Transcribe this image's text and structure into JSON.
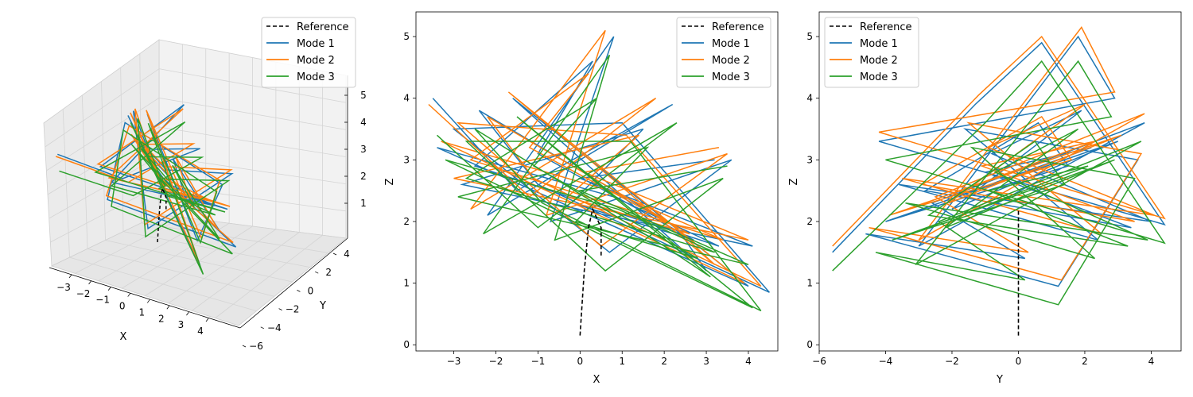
{
  "legend": {
    "reference": "Reference",
    "mode1": "Mode 1",
    "mode2": "Mode 2",
    "mode3": "Mode 3"
  },
  "colors": {
    "reference": "#000000",
    "mode1": "#1f77b4",
    "mode2": "#ff7f0e",
    "mode3": "#2ca02c",
    "pane": "#f2f2f2",
    "grid": "#d4d4d4"
  },
  "chart_data": [
    {
      "type": "line",
      "view": "3d",
      "xlabel": "X",
      "ylabel": "Y",
      "zlabel": "",
      "xticks": [
        "−3",
        "−2",
        "−1",
        "0",
        "1",
        "2",
        "3",
        "4"
      ],
      "yticks": [
        "−6",
        "−4",
        "−2",
        "0",
        "2",
        "4"
      ],
      "zticks": [
        "1",
        "2",
        "3",
        "4",
        "5"
      ],
      "legend_position": "top-right",
      "grid": true
    },
    {
      "type": "line",
      "view": "x-z projection",
      "xlabel": "X",
      "ylabel": "Z",
      "xlim": [
        -3.9,
        4.7
      ],
      "ylim": [
        -0.1,
        5.4
      ],
      "xticks": [
        "−3",
        "−2",
        "−1",
        "0",
        "1",
        "2",
        "3",
        "4"
      ],
      "yticks": [
        "0",
        "1",
        "2",
        "3",
        "4",
        "5"
      ],
      "legend_position": "top-right",
      "grid": false,
      "reference": {
        "x": [
          0.0,
          0.1,
          0.2,
          0.3,
          0.5,
          0.5
        ],
        "y": [
          0.15,
          1.2,
          1.9,
          2.2,
          1.9,
          1.45
        ]
      },
      "series": [
        {
          "name": "Mode 1",
          "x": [
            -3.5,
            -1.5,
            2.2,
            -2.2,
            0.8,
            -0.7,
            3.6,
            0.7,
            -3.0,
            1.0,
            4.5,
            -1.0,
            -2.4,
            2.3,
            3.0,
            -1.6,
            4.0,
            -3.4,
            0.8,
            3.3,
            -2.5,
            0.3,
            -1.0,
            2.7,
            -0.2,
            1.5,
            -2.8,
            4.1,
            0.0,
            3.2
          ],
          "y": [
            4.0,
            2.5,
            3.9,
            2.1,
            5.0,
            2.0,
            3.0,
            1.5,
            3.5,
            3.6,
            0.85,
            2.6,
            3.8,
            1.9,
            1.2,
            4.0,
            0.95,
            3.2,
            2.4,
            1.6,
            2.9,
            4.6,
            3.1,
            1.7,
            2.3,
            3.5,
            2.6,
            1.6,
            2.7,
            3.0
          ]
        },
        {
          "name": "Mode 2",
          "x": [
            -3.6,
            -1.2,
            1.8,
            -2.6,
            0.6,
            -0.8,
            3.5,
            0.5,
            -2.9,
            1.1,
            4.3,
            -1.1,
            -2.2,
            2.1,
            3.2,
            -1.7,
            3.9,
            -3.3,
            0.7,
            3.4,
            -2.6,
            0.2,
            -1.2,
            2.6,
            -0.3,
            1.4,
            -3.0,
            4.0,
            0.1,
            3.3
          ],
          "y": [
            3.9,
            2.4,
            4.0,
            2.2,
            5.1,
            2.1,
            3.1,
            1.6,
            3.6,
            3.4,
            0.95,
            2.7,
            3.7,
            2.0,
            1.3,
            4.1,
            1.0,
            3.3,
            2.5,
            1.7,
            3.0,
            4.4,
            3.2,
            1.8,
            2.4,
            3.4,
            2.7,
            1.7,
            2.8,
            3.2
          ]
        },
        {
          "name": "Mode 3",
          "x": [
            -3.4,
            -1.0,
            2.3,
            -2.3,
            0.7,
            -0.6,
            3.4,
            0.6,
            -2.7,
            1.2,
            4.3,
            -0.9,
            -2.5,
            2.0,
            3.1,
            -1.5,
            4.1,
            -3.2,
            0.9,
            3.2,
            -2.7,
            0.4,
            -1.1,
            2.8,
            -0.1,
            1.6,
            -2.9,
            4.0,
            0.0,
            3.5
          ],
          "y": [
            3.4,
            1.9,
            3.6,
            1.8,
            4.7,
            1.7,
            2.7,
            1.2,
            3.3,
            3.3,
            0.55,
            2.3,
            3.5,
            1.6,
            1.1,
            3.7,
            0.6,
            3.0,
            2.2,
            1.5,
            2.7,
            4.0,
            2.9,
            1.4,
            2.0,
            3.2,
            2.4,
            1.3,
            2.5,
            2.9
          ]
        }
      ]
    },
    {
      "type": "line",
      "view": "y-z projection",
      "xlabel": "Y",
      "ylabel": "Z",
      "xlim": [
        -6.0,
        4.9
      ],
      "ylim": [
        -0.1,
        5.4
      ],
      "xticks": [
        "−6",
        "−4",
        "−2",
        "0",
        "2",
        "4"
      ],
      "yticks": [
        "0",
        "1",
        "2",
        "3",
        "4",
        "5"
      ],
      "legend_position": "top-left",
      "grid": false,
      "reference": {
        "x": [
          0.0,
          0.0,
          0.0,
          0.0,
          0.0
        ],
        "y": [
          0.15,
          1.0,
          1.6,
          2.0,
          2.2
        ]
      },
      "series": [
        {
          "name": "Mode 1",
          "x": [
            -5.6,
            -1.3,
            0.7,
            4.4,
            -4.2,
            2.9,
            1.8,
            -3.0,
            3.8,
            -2.6,
            0.2,
            -4.6,
            1.2,
            3.6,
            -1.6,
            2.4,
            -3.6,
            4.0,
            -0.8,
            1.9,
            -2.0,
            3.0,
            -4.0,
            1.5,
            0.6,
            -2.8,
            3.4,
            -1.0,
            2.2,
            -3.4
          ],
          "y": [
            1.5,
            3.9,
            4.9,
            1.95,
            3.3,
            4.0,
            5.0,
            1.6,
            3.6,
            2.3,
            1.4,
            1.8,
            0.95,
            3.0,
            3.5,
            1.7,
            2.6,
            2.0,
            3.1,
            3.8,
            2.2,
            3.3,
            2.0,
            2.9,
            3.6,
            2.5,
            1.9,
            2.8,
            3.2,
            2.1
          ]
        },
        {
          "name": "Mode 2",
          "x": [
            -5.6,
            -1.2,
            0.7,
            4.4,
            -4.2,
            2.9,
            1.9,
            -3.0,
            3.8,
            -2.5,
            0.3,
            -4.5,
            1.3,
            3.7,
            -1.5,
            2.5,
            -3.5,
            4.1,
            -0.9,
            2.0,
            -2.1,
            3.1,
            -3.9,
            1.6,
            0.7,
            -2.9,
            3.5,
            -1.1,
            2.3,
            -3.3
          ],
          "y": [
            1.6,
            4.05,
            5.0,
            2.05,
            3.45,
            4.1,
            5.15,
            1.7,
            3.75,
            2.4,
            1.5,
            1.9,
            1.05,
            3.1,
            3.6,
            1.8,
            2.7,
            2.1,
            3.2,
            3.9,
            2.3,
            3.4,
            2.1,
            3.0,
            3.7,
            2.6,
            2.0,
            2.9,
            3.3,
            2.2
          ]
        },
        {
          "name": "Mode 3",
          "x": [
            -5.6,
            -1.0,
            0.7,
            4.4,
            -4.0,
            2.8,
            1.8,
            -3.1,
            3.7,
            -2.4,
            0.2,
            -4.3,
            1.2,
            3.5,
            -1.4,
            2.3,
            -3.4,
            3.9,
            -0.7,
            1.8,
            -2.2,
            2.9,
            -3.8,
            1.4,
            0.5,
            -2.7,
            3.3,
            -0.9,
            2.1,
            -3.2
          ],
          "y": [
            1.2,
            3.6,
            4.6,
            1.65,
            3.0,
            3.7,
            4.6,
            1.3,
            3.3,
            2.0,
            1.05,
            1.5,
            0.65,
            2.7,
            3.2,
            1.4,
            2.3,
            1.7,
            2.8,
            3.5,
            1.9,
            3.0,
            1.7,
            2.6,
            3.3,
            2.1,
            1.6,
            2.5,
            2.9,
            1.8
          ]
        }
      ]
    }
  ]
}
